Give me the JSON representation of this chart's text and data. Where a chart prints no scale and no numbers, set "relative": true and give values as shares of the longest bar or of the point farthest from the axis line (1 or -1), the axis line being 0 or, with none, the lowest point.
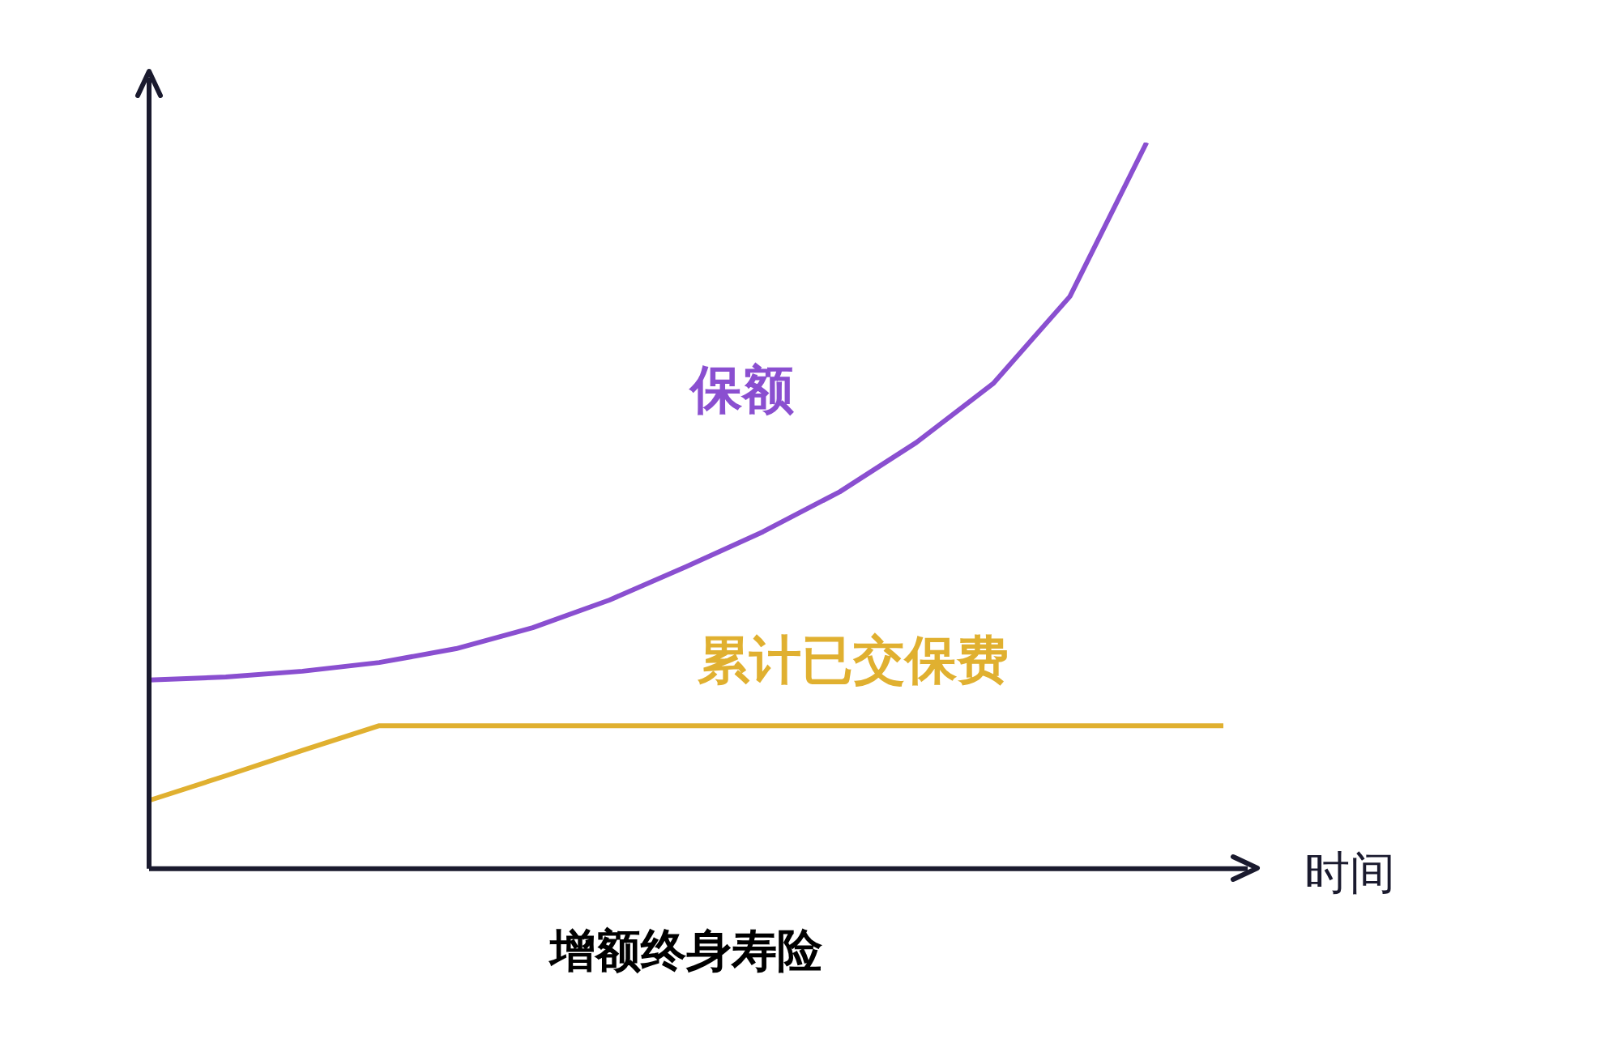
{
  "chart_data": {
    "type": "line",
    "title": "增额终身寿险",
    "xlabel": "时间",
    "relative": true,
    "legend": false,
    "grid": false,
    "marker": "none",
    "line_style": "solid",
    "categories": [
      null,
      null,
      null,
      null,
      null,
      null,
      null,
      null,
      null,
      null,
      null,
      null,
      null,
      null,
      null
    ],
    "series": [
      {
        "name": "保额",
        "color": "#8a4fd0",
        "values": [
          0.26,
          0.264,
          0.272,
          0.284,
          0.303,
          0.332,
          0.37,
          0.416,
          0.464,
          0.519,
          0.587,
          0.668,
          0.788,
          1,
          null
        ]
      },
      {
        "name": "累计已交保费",
        "color": "#e0b030",
        "values": [
          0.094,
          0.128,
          0.163,
          0.197,
          0.197,
          0.197,
          0.197,
          0.197,
          0.197,
          0.197,
          0.197,
          0.197,
          0.197,
          0.197,
          0.197
        ]
      }
    ]
  }
}
